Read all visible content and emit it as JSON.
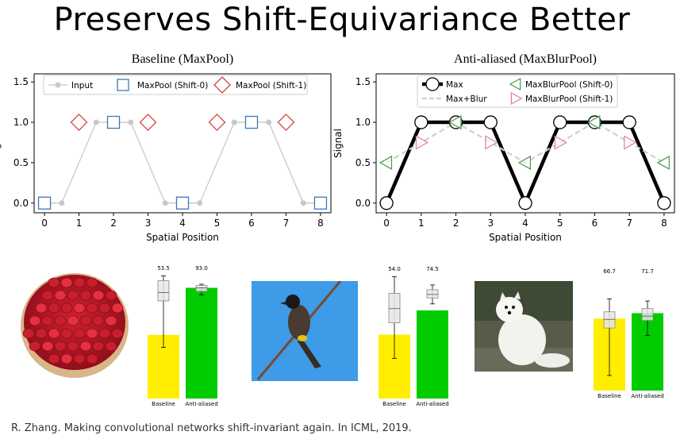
{
  "title": "Preserves Shift-Equivariance Better",
  "citation": "R. Zhang. Making convolutional networks shift-invariant again. In ICML, 2019.",
  "colors": {
    "maxpool_shift0": "#3a78b8",
    "maxpool_shift1": "#d9423a",
    "input_line": "#c8c8c8",
    "blur_shift0": "#4a9a4a",
    "blur_shift1": "#e07aa8",
    "bar_baseline": "#ffee00",
    "bar_antialiased": "#00cc00"
  },
  "chart_data": [
    {
      "type": "line",
      "title": "Baseline (MaxPool)",
      "xlabel": "Spatial Position",
      "ylabel": "Signal",
      "xlim": [
        -0.3,
        8.3
      ],
      "ylim": [
        -0.12,
        1.6
      ],
      "xticks": [
        "0",
        "1",
        "2",
        "3",
        "4",
        "5",
        "6",
        "7",
        "8"
      ],
      "yticks": [
        "0.0",
        "0.5",
        "1.0",
        "1.5"
      ],
      "legend_position": "top",
      "series": [
        {
          "name": "Input",
          "x": [
            0,
            0.5,
            1.5,
            2.5,
            3.5,
            4.5,
            5.5,
            6.5,
            7.5,
            8
          ],
          "y": [
            0,
            0,
            1,
            1,
            0,
            0,
            1,
            1,
            0,
            0
          ]
        },
        {
          "name": "MaxPool (Shift-0)",
          "x": [
            0,
            2,
            4,
            6,
            8
          ],
          "y": [
            0,
            1,
            0,
            1,
            0
          ]
        },
        {
          "name": "MaxPool (Shift-1)",
          "x": [
            1,
            3,
            5,
            7
          ],
          "y": [
            1,
            1,
            1,
            1
          ]
        }
      ]
    },
    {
      "type": "line",
      "title": "Anti-aliased (MaxBlurPool)",
      "xlabel": "Spatial Position",
      "ylabel": "Signal",
      "xlim": [
        -0.3,
        8.3
      ],
      "ylim": [
        -0.12,
        1.6
      ],
      "xticks": [
        "0",
        "1",
        "2",
        "3",
        "4",
        "5",
        "6",
        "7",
        "8"
      ],
      "yticks": [
        "0.0",
        "0.5",
        "1.0",
        "1.5"
      ],
      "legend_position": "top",
      "series": [
        {
          "name": "Max",
          "x": [
            0,
            1,
            2,
            3,
            4,
            5,
            6,
            7,
            8
          ],
          "y": [
            0,
            1,
            1,
            1,
            0,
            1,
            1,
            1,
            0
          ]
        },
        {
          "name": "Max+Blur",
          "x": [
            0,
            1,
            2,
            3,
            4,
            5,
            6,
            7,
            8
          ],
          "y": [
            0.5,
            0.75,
            1,
            0.75,
            0.5,
            0.75,
            1,
            0.75,
            0.5
          ]
        },
        {
          "name": "MaxBlurPool (Shift-0)",
          "x": [
            0,
            2,
            4,
            6,
            8
          ],
          "y": [
            0.5,
            1,
            0.5,
            1,
            0.5
          ]
        },
        {
          "name": "MaxBlurPool (Shift-1)",
          "x": [
            1,
            3,
            5,
            7
          ],
          "y": [
            0.75,
            0.75,
            0.75,
            0.75
          ]
        }
      ]
    },
    {
      "type": "bar",
      "categories": [
        "Baseline",
        "Anti-aliased"
      ],
      "values": [
        53.5,
        93.0
      ],
      "data_labels": [
        "53.5",
        "93.0"
      ],
      "error_box": [
        {
          "low": 43,
          "q1": 82,
          "median": 89,
          "q3": 99,
          "high": 103
        },
        {
          "low": 87,
          "q1": 90,
          "median": 93,
          "q3": 95,
          "high": 96
        }
      ],
      "ylim": [
        0,
        100
      ]
    },
    {
      "type": "bar",
      "categories": [
        "Baseline",
        "Anti-aliased"
      ],
      "values": [
        54.0,
        74.5
      ],
      "data_labels": [
        "54.0",
        "74.5"
      ],
      "error_box": [
        {
          "low": 34,
          "q1": 64,
          "median": 76,
          "q3": 89,
          "high": 103
        },
        {
          "low": 80,
          "q1": 85,
          "median": 88,
          "q3": 92,
          "high": 96
        }
      ],
      "ylim": [
        0,
        100
      ]
    },
    {
      "type": "bar",
      "categories": [
        "Baseline",
        "Anti-aliased"
      ],
      "values": [
        66.7,
        71.7
      ],
      "data_labels": [
        "66.7",
        "71.7"
      ],
      "error_box": [
        {
          "low": 14,
          "q1": 58,
          "median": 66,
          "q3": 73,
          "high": 85
        },
        {
          "low": 51,
          "q1": 65,
          "median": 69,
          "q3": 76,
          "high": 83
        }
      ],
      "ylim": [
        0,
        100
      ]
    }
  ]
}
